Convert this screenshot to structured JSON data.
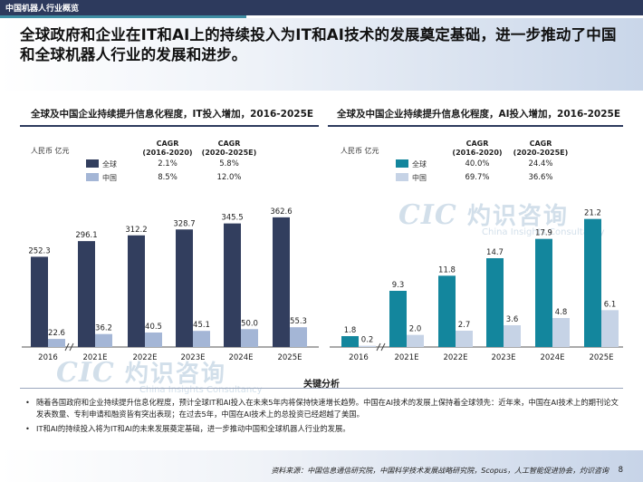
{
  "header": {
    "section_label": "中国机器人行业概览"
  },
  "headline": "全球政府和企业在IT和AI上的持续投入为IT和AI技术的发展奠定基础，进一步推动了中国和全球机器人行业的发展和进步。",
  "colors": {
    "navy": "#323e5e",
    "navy_light": "#a4b6d6",
    "teal": "#13869d",
    "teal_light": "#c6d3e6"
  },
  "chart_data": [
    {
      "type": "bar",
      "title": "全球及中国企业持续提升信息化程度，IT投入增加，2016-2025E",
      "unit": "人民币 亿元",
      "categories": [
        "2016",
        "2021E",
        "2022E",
        "2023E",
        "2024E",
        "2025E"
      ],
      "series": [
        {
          "name": "全球",
          "values": [
            252.3,
            296.1,
            312.2,
            328.7,
            345.5,
            362.6
          ]
        },
        {
          "name": "中国",
          "values": [
            22.6,
            36.2,
            40.5,
            45.1,
            50.0,
            55.3
          ]
        }
      ],
      "cagr_headers": [
        "CAGR\n(2016-2020)",
        "CAGR\n(2020-2025E)"
      ],
      "cagr": [
        {
          "series": "全球",
          "values": [
            "2.1%",
            "5.8%"
          ]
        },
        {
          "series": "中国",
          "values": [
            "8.5%",
            "12.0%"
          ]
        }
      ],
      "ylim": [
        0,
        380
      ],
      "axis_break_between": [
        "2016",
        "2021E"
      ]
    },
    {
      "type": "bar",
      "title": "全球及中国企业持续提升信息化程度，AI投入增加，2016-2025E",
      "unit": "人民币 亿元",
      "categories": [
        "2016",
        "2021E",
        "2022E",
        "2023E",
        "2024E",
        "2025E"
      ],
      "series": [
        {
          "name": "全球",
          "values": [
            1.8,
            9.3,
            11.8,
            14.7,
            17.9,
            21.2
          ]
        },
        {
          "name": "中国",
          "values": [
            0.2,
            2.0,
            2.7,
            3.6,
            4.8,
            6.1
          ]
        }
      ],
      "cagr_headers": [
        "CAGR\n(2016-2020)",
        "CAGR\n(2020-2025E)"
      ],
      "cagr": [
        {
          "series": "全球",
          "values": [
            "40.0%",
            "24.4%"
          ]
        },
        {
          "series": "中国",
          "values": [
            "69.7%",
            "36.6%"
          ]
        }
      ],
      "ylim": [
        0,
        22.5
      ],
      "axis_break_between": [
        "2016",
        "2021E"
      ]
    }
  ],
  "watermark": {
    "logo": "CIC",
    "cn": "灼识咨询",
    "en": "China Insights Consultancy"
  },
  "analysis": {
    "title": "关键分析",
    "bullets": [
      "随着各国政府和企业持续提升信息化程度，预计全球IT和AI投入在未来5年内将保持快速增长趋势。中国在AI技术的发展上保持着全球领先：近年来，中国在AI技术上的期刊论文发表数量、专利申请和融资皆有突出表现；在过去5年，中国在AI技术上的总投资已经超越了美国。",
      "IT和AI的持续投入将为IT和AI的未来发展奠定基础，进一步推动中国和全球机器人行业的发展。"
    ]
  },
  "footer": {
    "source": "资料来源：中国信息通信研究院，中国科学技术发展战略研究院，Scopus，人工智能促进协会，灼识咨询",
    "page": "8"
  }
}
